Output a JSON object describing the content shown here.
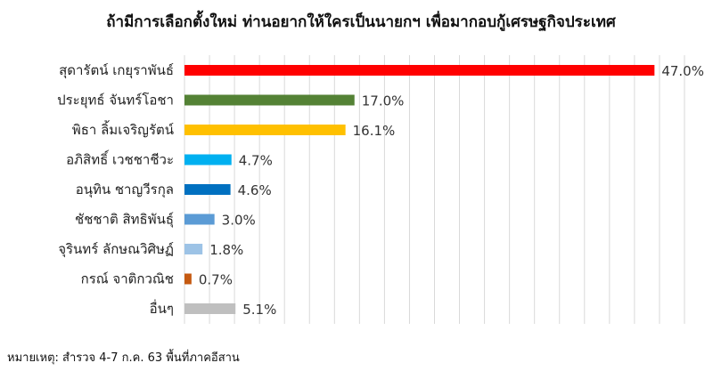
{
  "chart_data": {
    "type": "bar",
    "orientation": "horizontal",
    "title": "ถ้ามีการเลือกตั้งใหม่ ท่านอยากให้ใครเป็นนายกฯ เพื่อมากอบกู้เศรษฐกิจประเทศ",
    "categories": [
      "สุดารัตน์ เกยุราพันธ์",
      "ประยุทธ์ จันทร์โอชา",
      "พิธา ลิ้มเจริญรัตน์",
      "อภิสิทธิ์ เวชชาชีวะ",
      "อนุทิน ชาญวีรกุล",
      "ชัชชาติ สิทธิพันธุ์",
      "จุรินทร์ ลักษณวิศิษฏ์",
      "กรณ์ จาติกวณิช",
      "อื่นๆ"
    ],
    "values": [
      47.0,
      17.0,
      16.1,
      4.7,
      4.6,
      3.0,
      1.8,
      0.7,
      5.1
    ],
    "data_labels": [
      "47.0%",
      "17.0%",
      "16.1%",
      "4.7%",
      "4.6%",
      "3.0%",
      "1.8%",
      "0.7%",
      "5.1%"
    ],
    "colors": [
      "#ff0000",
      "#548235",
      "#ffc000",
      "#00b0f0",
      "#0070c0",
      "#5b9bd5",
      "#9dc3e6",
      "#c55a11",
      "#bfbfbf"
    ],
    "xlim": [
      0,
      50
    ],
    "grid": true,
    "legend": "none"
  },
  "footnote": "หมายเหตุ: สำรวจ 4-7 ก.ค. 63  พื้นที่ภาคอีสาน"
}
